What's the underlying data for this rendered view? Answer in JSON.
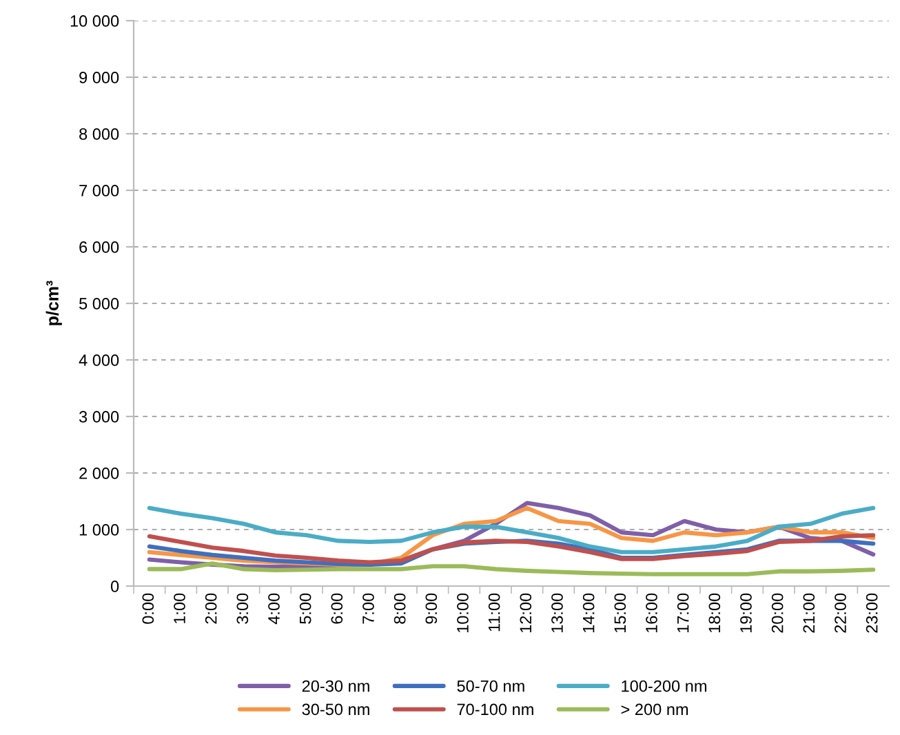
{
  "chart_data": {
    "type": "line",
    "ylabel": "p/cm³",
    "categories": [
      "0:00",
      "1:00",
      "2:00",
      "3:00",
      "4:00",
      "5:00",
      "6:00",
      "7:00",
      "8:00",
      "9:00",
      "10:00",
      "11:00",
      "12:00",
      "13:00",
      "14:00",
      "15:00",
      "16:00",
      "17:00",
      "18:00",
      "19:00",
      "20:00",
      "21:00",
      "22:00",
      "23:00"
    ],
    "series": [
      {
        "name": "20-30 nm",
        "color": "#7f5fa8",
        "values": [
          470,
          420,
          380,
          350,
          340,
          350,
          370,
          380,
          450,
          650,
          800,
          1100,
          1470,
          1380,
          1250,
          950,
          900,
          1150,
          1000,
          950,
          1050,
          850,
          800,
          560
        ]
      },
      {
        "name": "30-50 nm",
        "color": "#f79646",
        "values": [
          600,
          550,
          500,
          450,
          420,
          400,
          380,
          380,
          500,
          900,
          1100,
          1150,
          1380,
          1150,
          1100,
          850,
          800,
          950,
          900,
          950,
          1050,
          950,
          950,
          850
        ]
      },
      {
        "name": "50-70 nm",
        "color": "#3f6fbf",
        "values": [
          700,
          620,
          550,
          500,
          450,
          420,
          390,
          380,
          400,
          650,
          750,
          780,
          800,
          750,
          650,
          500,
          500,
          550,
          600,
          650,
          800,
          800,
          800,
          750
        ]
      },
      {
        "name": "70-100 nm",
        "color": "#c0504d",
        "values": [
          880,
          780,
          680,
          620,
          540,
          500,
          450,
          420,
          450,
          650,
          770,
          800,
          780,
          700,
          600,
          480,
          480,
          530,
          570,
          620,
          780,
          800,
          880,
          900
        ]
      },
      {
        "name": "100-200 nm",
        "color": "#4bacc6",
        "values": [
          1380,
          1280,
          1200,
          1100,
          950,
          900,
          800,
          780,
          800,
          950,
          1050,
          1050,
          950,
          850,
          700,
          600,
          600,
          650,
          700,
          800,
          1050,
          1100,
          1280,
          1380
        ]
      },
      {
        "name": "> 200 nm",
        "color": "#9bbb59",
        "values": [
          300,
          300,
          400,
          300,
          280,
          290,
          300,
          300,
          300,
          350,
          350,
          300,
          270,
          250,
          230,
          220,
          210,
          210,
          210,
          210,
          260,
          260,
          270,
          290
        ]
      }
    ],
    "ylim": [
      0,
      10000
    ],
    "yticks": [
      0,
      {
        "value": 1000,
        "label": "1 000"
      },
      {
        "value": 2000,
        "label": "2 000"
      },
      {
        "value": 3000,
        "label": "3 000"
      },
      {
        "value": 4000,
        "label": "4 000"
      },
      {
        "value": 5000,
        "label": "5 000"
      },
      {
        "value": 6000,
        "label": "6 000"
      },
      {
        "value": 7000,
        "label": "7 000"
      },
      {
        "value": 8000,
        "label": "8 000"
      },
      {
        "value": 9000,
        "label": "9 000"
      },
      {
        "value": 10000,
        "label": "10 000"
      }
    ],
    "grid": "y",
    "legend": "bottom",
    "marker": "none",
    "line_style": "solid"
  }
}
